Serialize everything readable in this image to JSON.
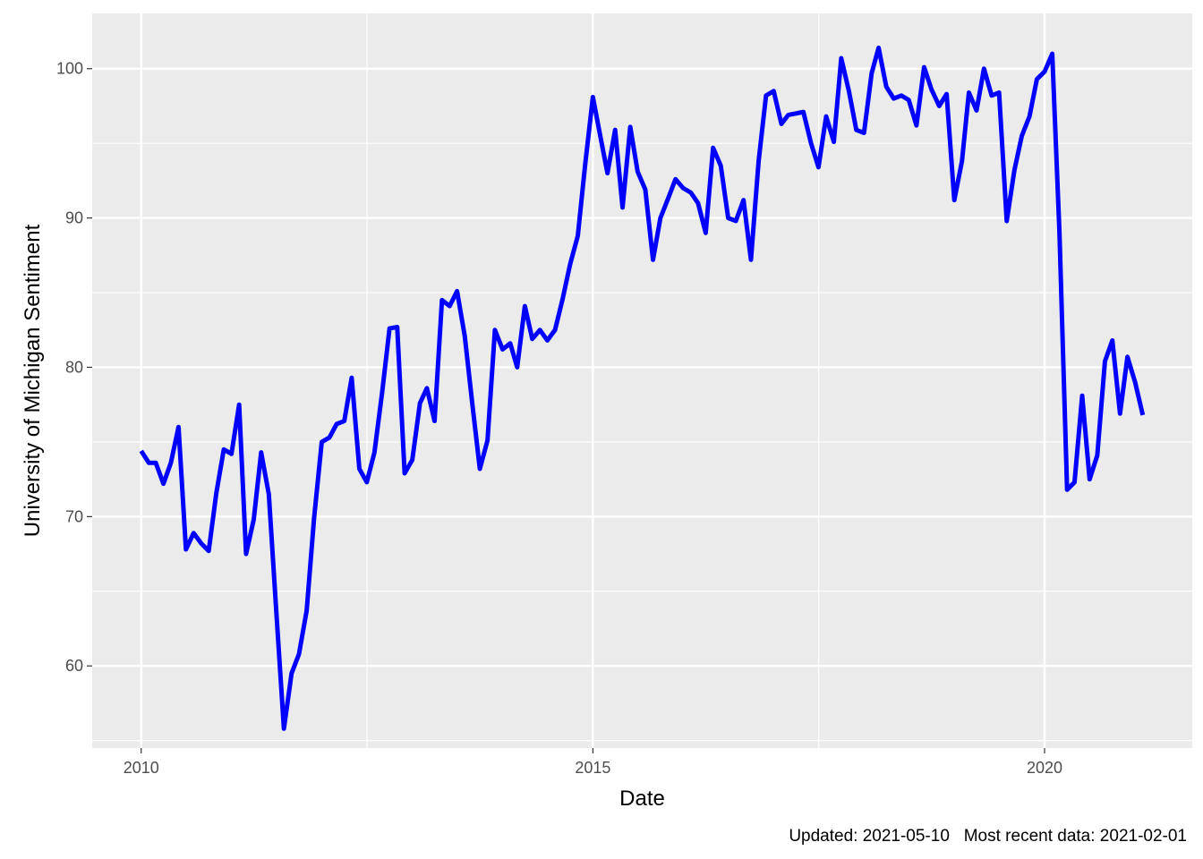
{
  "chart_data": {
    "type": "line",
    "xlabel": "Date",
    "ylabel": "University of Michigan Sentiment",
    "caption": "Updated: 2021-05-10   Most recent data: 2021-02-01",
    "x_ticks": [
      "2010",
      "2015",
      "2020"
    ],
    "y_ticks": [
      "60",
      "70",
      "80",
      "90",
      "100"
    ],
    "xlim": [
      "2009-06-17",
      "2021-08-20"
    ],
    "ylim": [
      54.5,
      103.7
    ],
    "grid": true,
    "legend": "none",
    "colors": {
      "line": "#0000ff",
      "panel": "#ebebeb",
      "grid": "#ffffff"
    },
    "series": [
      {
        "dates": [
          "2010-01-01",
          "2010-02-01",
          "2010-03-01",
          "2010-04-01",
          "2010-05-01",
          "2010-06-01",
          "2010-07-01",
          "2010-08-01",
          "2010-09-01",
          "2010-10-01",
          "2010-11-01",
          "2010-12-01",
          "2011-01-01",
          "2011-02-01",
          "2011-03-01",
          "2011-04-01",
          "2011-05-01",
          "2011-06-01",
          "2011-07-01",
          "2011-08-01",
          "2011-09-01",
          "2011-10-01",
          "2011-11-01",
          "2011-12-01",
          "2012-01-01",
          "2012-02-01",
          "2012-03-01",
          "2012-04-01",
          "2012-05-01",
          "2012-06-01",
          "2012-07-01",
          "2012-08-01",
          "2012-09-01",
          "2012-10-01",
          "2012-11-01",
          "2012-12-01",
          "2013-01-01",
          "2013-02-01",
          "2013-03-01",
          "2013-04-01",
          "2013-05-01",
          "2013-06-01",
          "2013-07-01",
          "2013-08-01",
          "2013-09-01",
          "2013-10-01",
          "2013-11-01",
          "2013-12-01",
          "2014-01-01",
          "2014-02-01",
          "2014-03-01",
          "2014-04-01",
          "2014-05-01",
          "2014-06-01",
          "2014-07-01",
          "2014-08-01",
          "2014-09-01",
          "2014-10-01",
          "2014-11-01",
          "2014-12-01",
          "2015-01-01",
          "2015-02-01",
          "2015-03-01",
          "2015-04-01",
          "2015-05-01",
          "2015-06-01",
          "2015-07-01",
          "2015-08-01",
          "2015-09-01",
          "2015-10-01",
          "2015-11-01",
          "2015-12-01",
          "2016-01-01",
          "2016-02-01",
          "2016-03-01",
          "2016-04-01",
          "2016-05-01",
          "2016-06-01",
          "2016-07-01",
          "2016-08-01",
          "2016-09-01",
          "2016-10-01",
          "2016-11-01",
          "2016-12-01",
          "2017-01-01",
          "2017-02-01",
          "2017-03-01",
          "2017-04-01",
          "2017-05-01",
          "2017-06-01",
          "2017-07-01",
          "2017-08-01",
          "2017-09-01",
          "2017-10-01",
          "2017-11-01",
          "2017-12-01",
          "2018-01-01",
          "2018-02-01",
          "2018-03-01",
          "2018-04-01",
          "2018-05-01",
          "2018-06-01",
          "2018-07-01",
          "2018-08-01",
          "2018-09-01",
          "2018-10-01",
          "2018-11-01",
          "2018-12-01",
          "2019-01-01",
          "2019-02-01",
          "2019-03-01",
          "2019-04-01",
          "2019-05-01",
          "2019-06-01",
          "2019-07-01",
          "2019-08-01",
          "2019-09-01",
          "2019-10-01",
          "2019-11-01",
          "2019-12-01",
          "2020-01-01",
          "2020-02-01",
          "2020-03-01",
          "2020-04-01",
          "2020-05-01",
          "2020-06-01",
          "2020-07-01",
          "2020-08-01",
          "2020-09-01",
          "2020-10-01",
          "2020-11-01",
          "2020-12-01",
          "2021-01-01",
          "2021-02-01"
        ],
        "values": [
          74.4,
          73.6,
          73.6,
          72.2,
          73.6,
          76.0,
          67.8,
          68.9,
          68.2,
          67.7,
          71.6,
          74.5,
          74.2,
          77.5,
          67.5,
          69.8,
          74.3,
          71.5,
          63.7,
          55.8,
          59.5,
          60.8,
          63.7,
          69.9,
          75.0,
          75.3,
          76.2,
          76.4,
          79.3,
          73.2,
          72.3,
          74.3,
          78.3,
          82.6,
          82.7,
          72.9,
          73.8,
          77.6,
          78.6,
          76.4,
          84.5,
          84.1,
          85.1,
          82.1,
          77.5,
          73.2,
          75.1,
          82.5,
          81.2,
          81.6,
          80.0,
          84.1,
          81.9,
          82.5,
          81.8,
          82.5,
          84.6,
          86.9,
          88.8,
          93.6,
          98.1,
          95.4,
          93.0,
          95.9,
          90.7,
          96.1,
          93.1,
          91.9,
          87.2,
          90.0,
          91.3,
          92.6,
          92.0,
          91.7,
          91.0,
          89.0,
          94.7,
          93.5,
          90.0,
          89.8,
          91.2,
          87.2,
          93.8,
          98.2,
          98.5,
          96.3,
          96.9,
          97.0,
          97.1,
          95.0,
          93.4,
          96.8,
          95.1,
          100.7,
          98.5,
          95.9,
          95.7,
          99.7,
          101.4,
          98.8,
          98.0,
          98.2,
          97.9,
          96.2,
          100.1,
          98.6,
          97.5,
          98.3,
          91.2,
          93.8,
          98.4,
          97.2,
          100.0,
          98.2,
          98.4,
          89.8,
          93.2,
          95.5,
          96.8,
          99.3,
          99.8,
          101.0,
          89.1,
          71.8,
          72.3,
          78.1,
          72.5,
          74.1,
          80.4,
          81.8,
          76.9,
          80.7,
          79.0,
          76.8
        ]
      }
    ]
  }
}
